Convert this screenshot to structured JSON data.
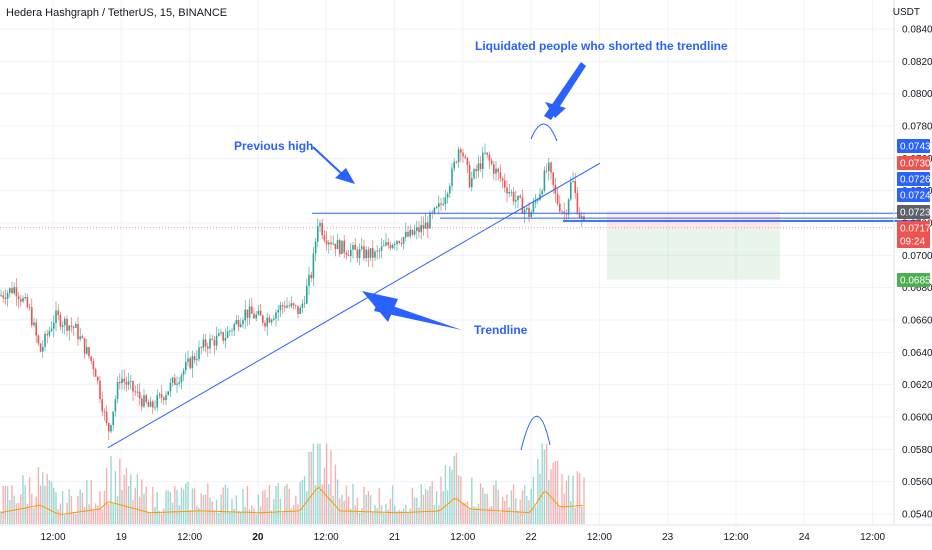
{
  "header": {
    "title": "Hedera Hashgraph / TetherUS, 15, BINANCE",
    "unit": "USDT"
  },
  "annotations": {
    "liquidated": "Liquidated people who shorted the trendline",
    "previous_high": "Previous high",
    "trendline": "Trendline"
  },
  "colors": {
    "up": "#26a69a",
    "down": "#ef5350",
    "annotation": "#2962ff",
    "volume_ma": "#ff9800",
    "grid": "#f0f3fa"
  },
  "chart_data": {
    "type": "candlestick",
    "symbol": "Hedera Hashgraph / TetherUS",
    "interval": "15",
    "exchange": "BINANCE",
    "y_ticks": [
      0.084,
      0.082,
      0.08,
      0.078,
      0.076,
      0.074,
      0.072,
      0.07,
      0.068,
      0.066,
      0.064,
      0.062,
      0.06,
      0.058,
      0.056,
      0.054
    ],
    "y_tick_labels": [
      "0.0840",
      "0.0820",
      "0.0800",
      "0.0780",
      "0.0760",
      "0.0740",
      "0.0720",
      "0.0700",
      "0.0680",
      "0.0660",
      "0.0640",
      "0.0620",
      "0.0600",
      "0.0580",
      "0.0560",
      "0.0540"
    ],
    "ylim": [
      0.053,
      0.0845
    ],
    "x_ticks": [
      {
        "label": "12:00",
        "bold": false
      },
      {
        "label": "19",
        "bold": false
      },
      {
        "label": "12:00",
        "bold": false
      },
      {
        "label": "20",
        "bold": true
      },
      {
        "label": "12:00",
        "bold": false
      },
      {
        "label": "21",
        "bold": false
      },
      {
        "label": "12:00",
        "bold": false
      },
      {
        "label": "22",
        "bold": false
      },
      {
        "label": "12:00",
        "bold": false
      },
      {
        "label": "23",
        "bold": false
      },
      {
        "label": "12:00",
        "bold": false
      },
      {
        "label": "24",
        "bold": false
      },
      {
        "label": "12:00",
        "bold": false
      }
    ],
    "price_path": [
      {
        "x": 0,
        "y": 0.0675
      },
      {
        "x": 15,
        "y": 0.068
      },
      {
        "x": 30,
        "y": 0.0665
      },
      {
        "x": 40,
        "y": 0.064
      },
      {
        "x": 55,
        "y": 0.0662
      },
      {
        "x": 75,
        "y": 0.0655
      },
      {
        "x": 95,
        "y": 0.063
      },
      {
        "x": 108,
        "y": 0.059
      },
      {
        "x": 120,
        "y": 0.0625
      },
      {
        "x": 135,
        "y": 0.0615
      },
      {
        "x": 150,
        "y": 0.0605
      },
      {
        "x": 165,
        "y": 0.0615
      },
      {
        "x": 185,
        "y": 0.063
      },
      {
        "x": 205,
        "y": 0.0645
      },
      {
        "x": 225,
        "y": 0.065
      },
      {
        "x": 245,
        "y": 0.0665
      },
      {
        "x": 265,
        "y": 0.066
      },
      {
        "x": 285,
        "y": 0.067
      },
      {
        "x": 300,
        "y": 0.0665
      },
      {
        "x": 312,
        "y": 0.069
      },
      {
        "x": 318,
        "y": 0.0722
      },
      {
        "x": 325,
        "y": 0.0712
      },
      {
        "x": 340,
        "y": 0.0705
      },
      {
        "x": 355,
        "y": 0.0702
      },
      {
        "x": 375,
        "y": 0.07
      },
      {
        "x": 395,
        "y": 0.071
      },
      {
        "x": 410,
        "y": 0.0712
      },
      {
        "x": 425,
        "y": 0.0718
      },
      {
        "x": 440,
        "y": 0.073
      },
      {
        "x": 452,
        "y": 0.075
      },
      {
        "x": 460,
        "y": 0.077
      },
      {
        "x": 470,
        "y": 0.0745
      },
      {
        "x": 485,
        "y": 0.0762
      },
      {
        "x": 500,
        "y": 0.0748
      },
      {
        "x": 515,
        "y": 0.0735
      },
      {
        "x": 530,
        "y": 0.0725
      },
      {
        "x": 540,
        "y": 0.074
      },
      {
        "x": 548,
        "y": 0.0755
      },
      {
        "x": 556,
        "y": 0.0735
      },
      {
        "x": 565,
        "y": 0.0725
      },
      {
        "x": 572,
        "y": 0.0748
      },
      {
        "x": 578,
        "y": 0.0728
      },
      {
        "x": 585,
        "y": 0.0717
      }
    ],
    "volume_path": [
      {
        "x": 0,
        "y": 0.3
      },
      {
        "x": 40,
        "y": 0.5
      },
      {
        "x": 60,
        "y": 0.25
      },
      {
        "x": 100,
        "y": 0.4
      },
      {
        "x": 108,
        "y": 0.6
      },
      {
        "x": 150,
        "y": 0.3
      },
      {
        "x": 200,
        "y": 0.35
      },
      {
        "x": 260,
        "y": 0.3
      },
      {
        "x": 300,
        "y": 0.35
      },
      {
        "x": 318,
        "y": 1.0
      },
      {
        "x": 340,
        "y": 0.35
      },
      {
        "x": 400,
        "y": 0.3
      },
      {
        "x": 440,
        "y": 0.35
      },
      {
        "x": 455,
        "y": 0.7
      },
      {
        "x": 470,
        "y": 0.4
      },
      {
        "x": 500,
        "y": 0.35
      },
      {
        "x": 530,
        "y": 0.3
      },
      {
        "x": 545,
        "y": 0.9
      },
      {
        "x": 560,
        "y": 0.45
      },
      {
        "x": 585,
        "y": 0.5
      }
    ],
    "horizontal_levels": [
      {
        "name": "previous-high-line",
        "y": 0.0726,
        "x_start": 312,
        "x_end": 920
      },
      {
        "name": "breakout-line",
        "y": 0.0723,
        "x_start": 440,
        "x_end": 920
      },
      {
        "name": "short-line-1",
        "y": 0.07215,
        "x_start": 563,
        "x_end": 920
      },
      {
        "name": "short-line-2",
        "y": 0.0721,
        "x_start": 563,
        "x_end": 920
      }
    ],
    "trendline": {
      "x1": 108,
      "y1": 0.0581,
      "x2": 600,
      "y2": 0.0757
    },
    "price_tags": [
      {
        "label": "0.0743",
        "value": 0.0743,
        "bg": "#2962ff"
      },
      {
        "label": "0.0730",
        "value": 0.073,
        "bg": "#ef5350"
      },
      {
        "label": "0.0726",
        "value": 0.0726,
        "bg": "#2962ff"
      },
      {
        "label": "0.0724",
        "value": 0.0724,
        "bg": "#2962ff"
      },
      {
        "label": "0.0723",
        "value": 0.0723,
        "bg": "#5d606b"
      },
      {
        "label": "0.0717",
        "value": 0.0717,
        "bg": "#ef5350"
      },
      {
        "label": "09:24",
        "value": 0.0709,
        "bg": "#ef5350"
      },
      {
        "label": "0.0685",
        "value": 0.0686,
        "bg": "#4caf50"
      }
    ],
    "position": {
      "entry": 0.0717,
      "stop": 0.0723,
      "target": 0.0685
    }
  }
}
